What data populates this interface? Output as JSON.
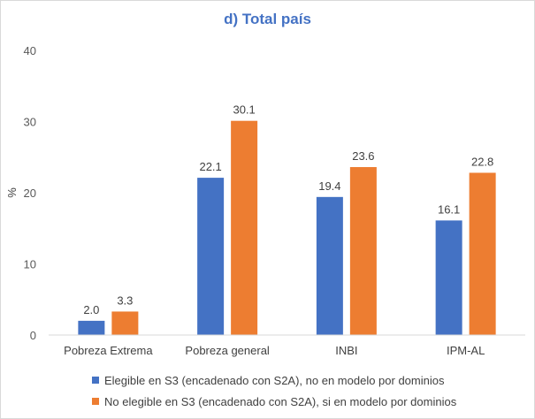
{
  "chart_data": {
    "type": "bar",
    "title": "d) Total país",
    "ylabel": "%",
    "xlabel": "",
    "ylim": [
      0,
      40
    ],
    "yticks": [
      0,
      10,
      20,
      30,
      40
    ],
    "categories": [
      "Pobreza Extrema",
      "Pobreza general",
      "INBI",
      "IPM-AL"
    ],
    "series": [
      {
        "name": "Elegible en S3 (encadenado con S2A), no en modelo por dominios",
        "color": "#4472c4",
        "values": [
          2.0,
          22.1,
          19.4,
          16.1
        ],
        "labels": [
          "2.0",
          "22.1",
          "19.4",
          "16.1"
        ]
      },
      {
        "name": "No elegible en S3 (encadenado con S2A), si en modelo por dominios",
        "color": "#ed7d31",
        "values": [
          3.3,
          30.1,
          23.6,
          22.8
        ],
        "labels": [
          "3.3",
          "30.1",
          "23.6",
          "22.8"
        ]
      }
    ],
    "grid": false,
    "legend_position": "bottom-left"
  }
}
